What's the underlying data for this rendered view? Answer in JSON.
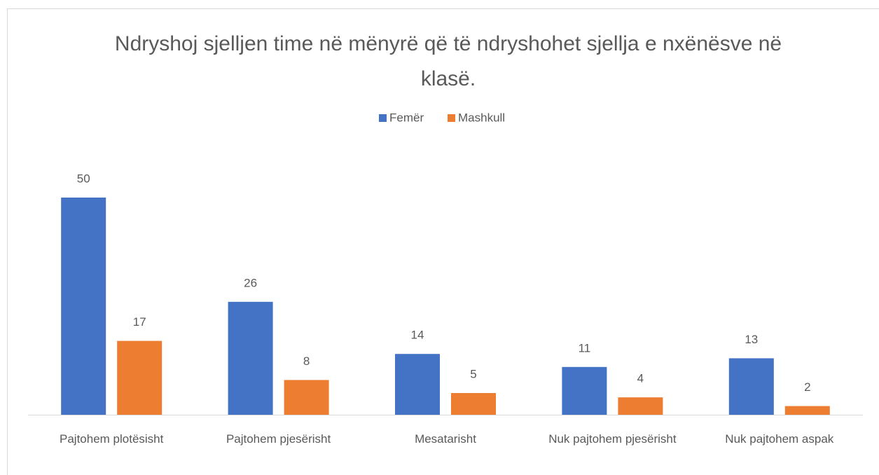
{
  "chart_data": {
    "type": "bar",
    "title": "Ndryshoj sjelljen time në mënyrë që të ndryshohet sjellja e nxënësve në klasë.",
    "categories": [
      "Pajtohem plotësisht",
      "Pajtohem pjesërisht",
      "Mesatarisht",
      "Nuk pajtohem pjesërisht",
      "Nuk pajtohem aspak"
    ],
    "series": [
      {
        "name": "Femër",
        "color": "#4472c4",
        "values": [
          50,
          26,
          14,
          11,
          13
        ]
      },
      {
        "name": "Mashkull",
        "color": "#ed7d31",
        "values": [
          17,
          8,
          5,
          4,
          2
        ]
      }
    ],
    "legend": "top"
  }
}
